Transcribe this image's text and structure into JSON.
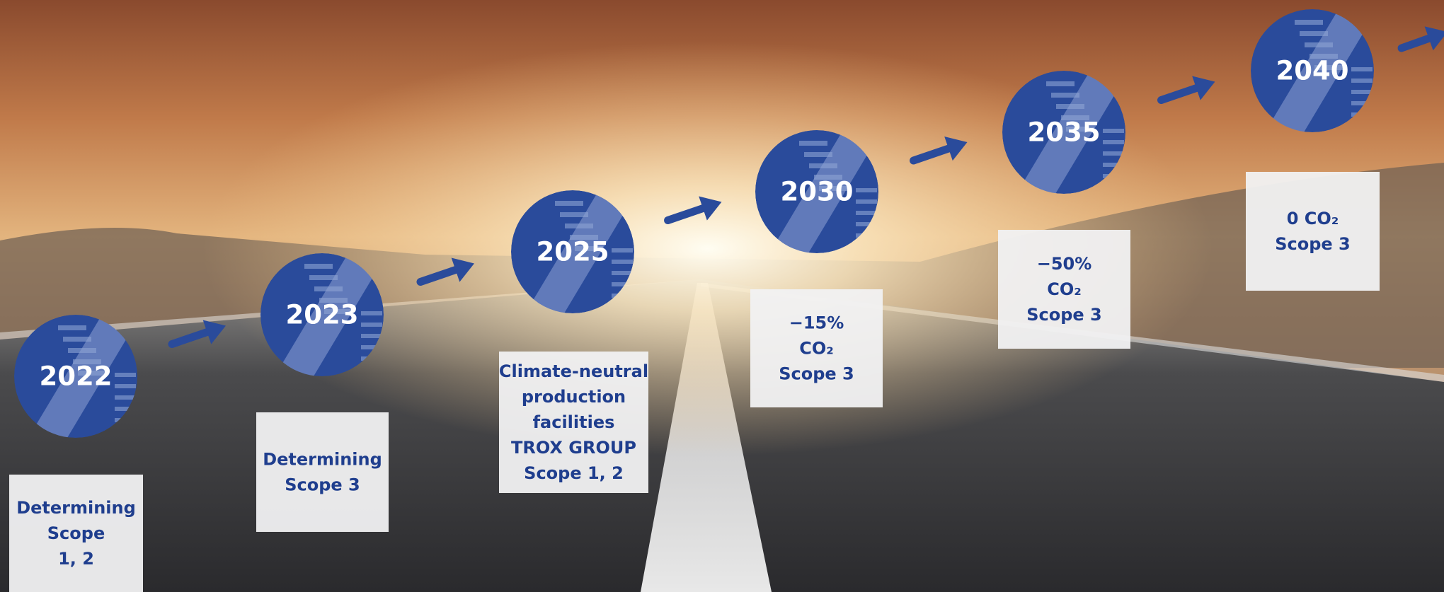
{
  "milestones": [
    {
      "year": "2022",
      "lines": [
        "Determining",
        "Scope",
        "1, 2"
      ]
    },
    {
      "year": "2023",
      "lines": [
        "Determining",
        "Scope 3"
      ]
    },
    {
      "year": "2025",
      "lines": [
        "Climate-neutral",
        "production",
        "facilities",
        "TROX GROUP",
        "Scope 1, 2"
      ]
    },
    {
      "year": "2030",
      "lines": [
        "−15%",
        "CO₂",
        "Scope 3"
      ]
    },
    {
      "year": "2035",
      "lines": [
        "−50%",
        "CO₂",
        "Scope 3"
      ]
    },
    {
      "year": "2040",
      "lines": [
        "0 CO₂",
        "Scope 3"
      ]
    }
  ]
}
